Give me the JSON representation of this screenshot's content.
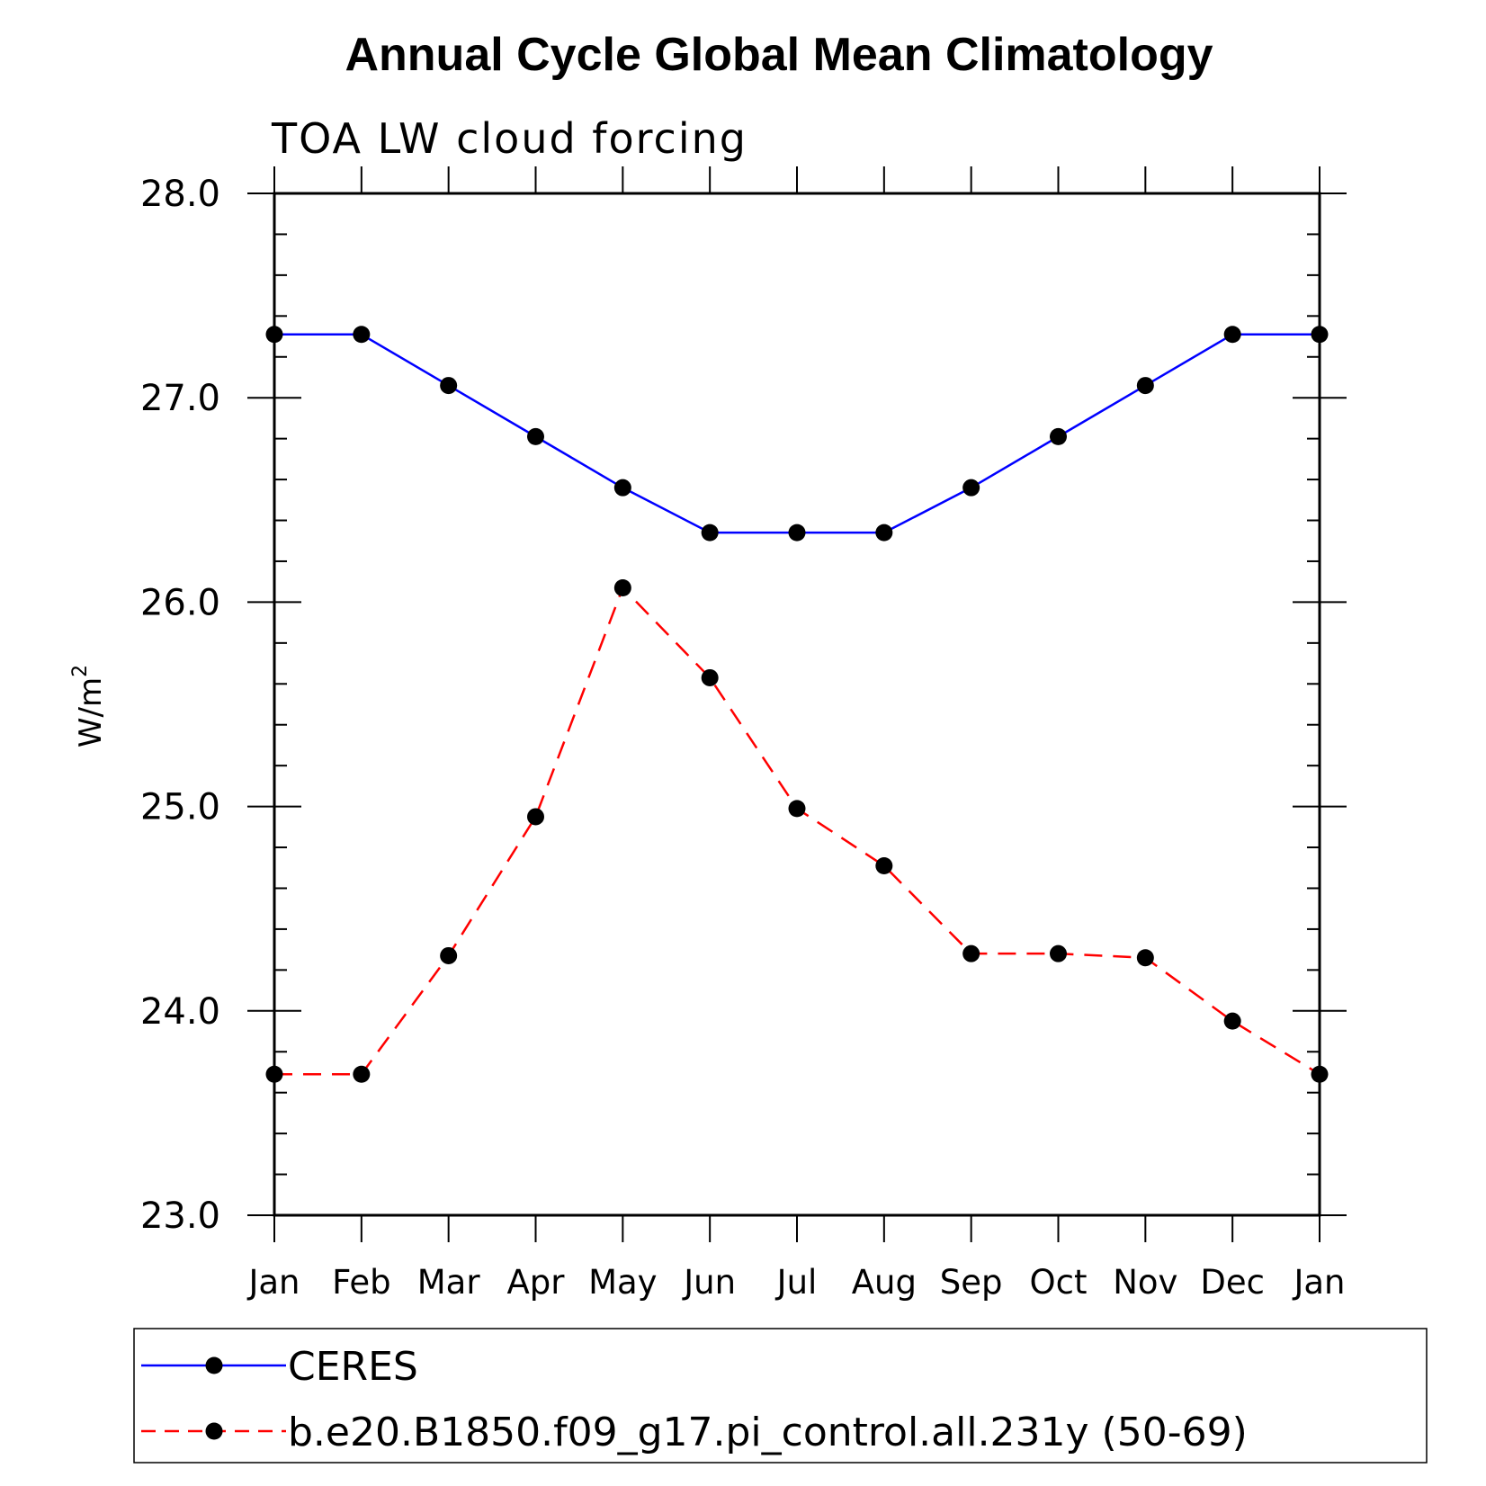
{
  "chart_data": {
    "type": "line",
    "title": "Annual Cycle Global Mean Climatology",
    "subtitle": "TOA LW cloud forcing",
    "ylabel": "W/m",
    "ylabel_superscript": "2",
    "xlabel": "",
    "ylim": [
      23.0,
      28.0
    ],
    "yticks": [
      "23.0",
      "24.0",
      "25.0",
      "26.0",
      "27.0",
      "28.0"
    ],
    "categories": [
      "Jan",
      "Feb",
      "Mar",
      "Apr",
      "May",
      "Jun",
      "Jul",
      "Aug",
      "Sep",
      "Oct",
      "Nov",
      "Dec",
      "Jan"
    ],
    "series": [
      {
        "name": "CERES",
        "color": "#0000ff",
        "dash": "solid",
        "values": [
          27.31,
          27.31,
          27.06,
          26.81,
          26.56,
          26.34,
          26.34,
          26.34,
          26.56,
          26.81,
          27.06,
          27.31,
          27.31
        ]
      },
      {
        "name": "b.e20.B1850.f09_g17.pi_control.all.231y (50-69)",
        "color": "#ff0000",
        "dash": "dashed",
        "values": [
          23.69,
          23.69,
          24.27,
          24.95,
          26.07,
          25.63,
          24.99,
          24.71,
          24.28,
          24.28,
          24.26,
          23.95,
          23.69
        ]
      }
    ],
    "legend": "bottom",
    "grid": false
  }
}
